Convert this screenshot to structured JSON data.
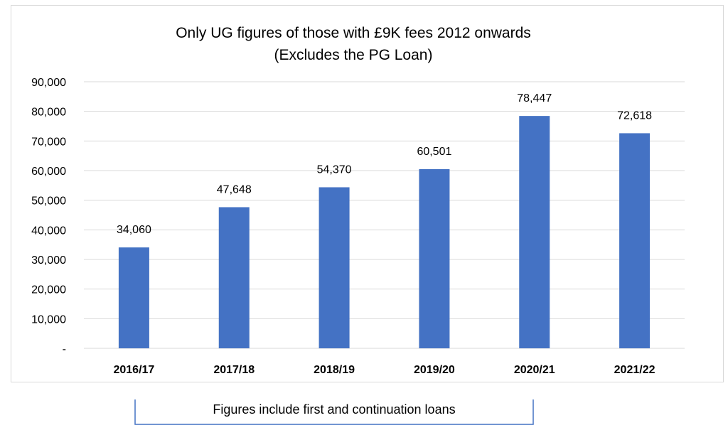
{
  "chart_data": {
    "type": "bar",
    "title": [
      "Only UG figures of those with £9K fees 2012 onwards",
      "(Excludes the PG Loan)"
    ],
    "categories": [
      "2016/17",
      "2017/18",
      "2018/19",
      "2019/20",
      "2020/21",
      "2021/22"
    ],
    "values": [
      34060,
      47648,
      54370,
      60501,
      78447,
      72618
    ],
    "data_labels": [
      "34,060",
      "47,648",
      "54,370",
      "60,501",
      "78,447",
      "72,618"
    ],
    "ylim": [
      0,
      90000
    ],
    "yticks": [
      0,
      10000,
      20000,
      30000,
      40000,
      50000,
      60000,
      70000,
      80000,
      90000
    ],
    "ytick_labels": [
      "-",
      "10,000",
      "20,000",
      "30,000",
      "40,000",
      "50,000",
      "60,000",
      "70,000",
      "80,000",
      "90,000"
    ],
    "grid": true,
    "legend": "none",
    "bar_color": "#4472c4",
    "xlabel": "",
    "ylabel": ""
  },
  "annotation": {
    "text": "Figures include first and continuation loans",
    "bracket_color": "#4472c4"
  }
}
